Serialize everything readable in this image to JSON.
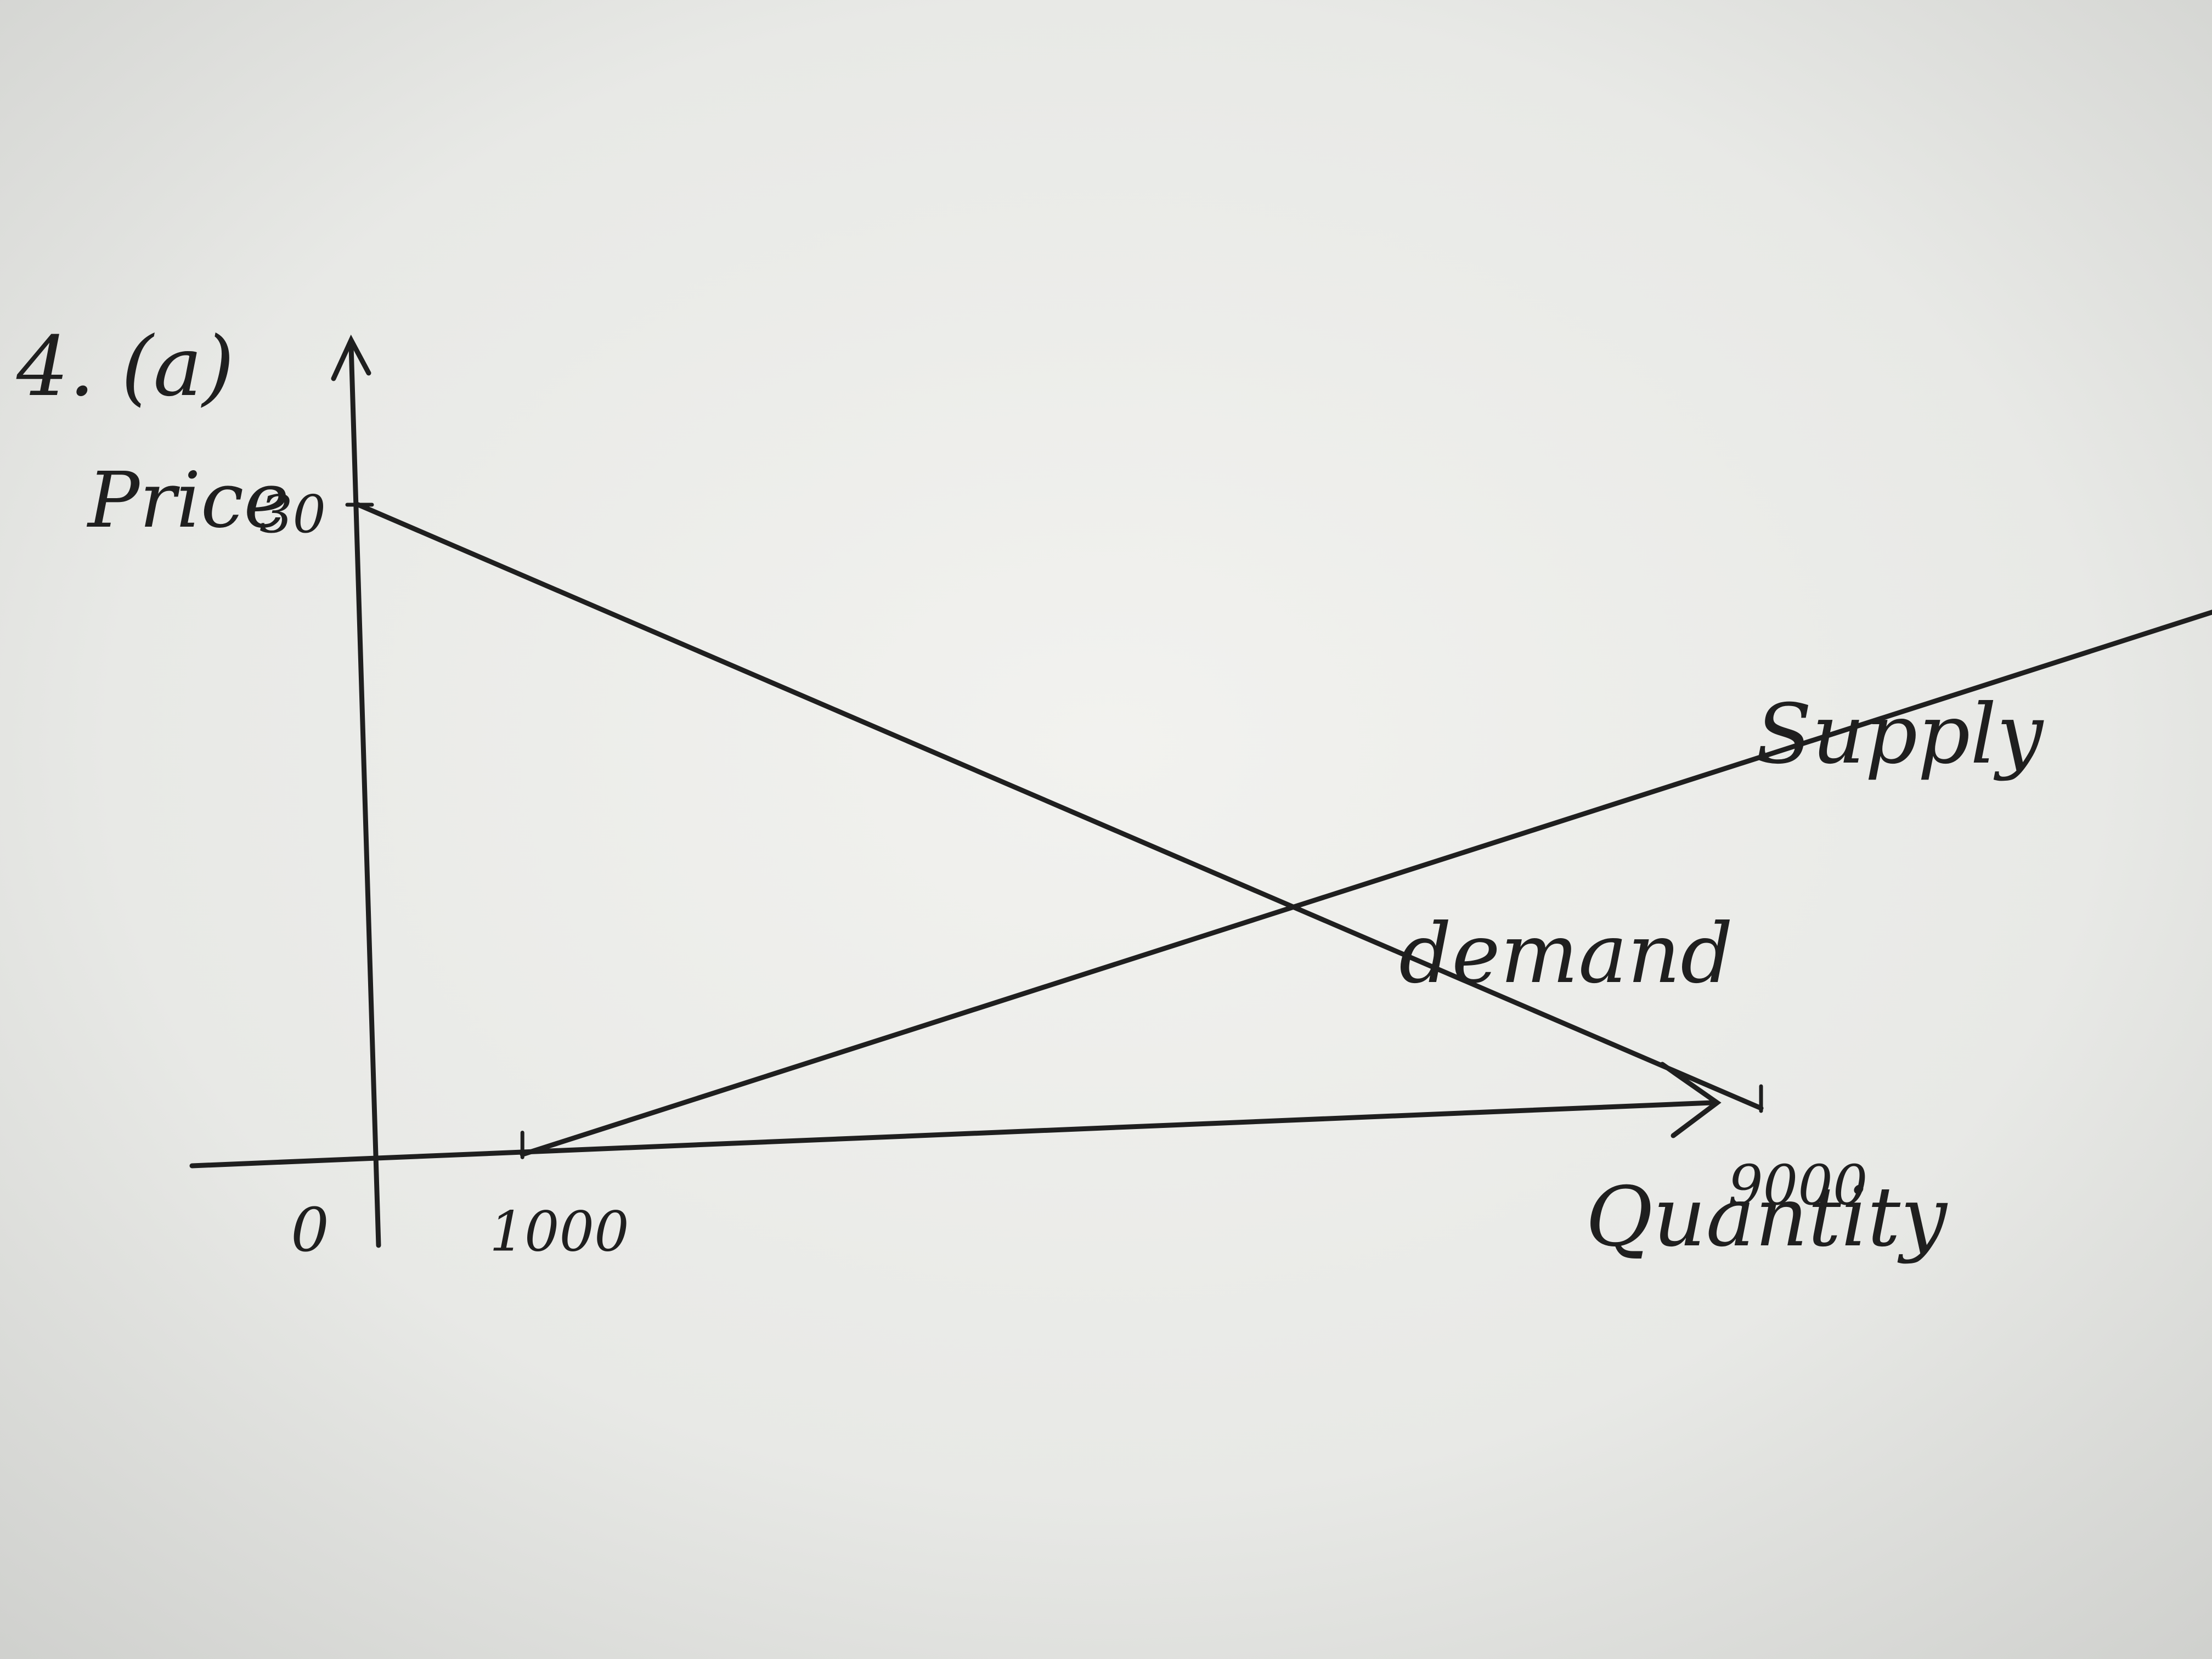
{
  "problem_label": "4. (a)",
  "chart_data": {
    "type": "line",
    "title": "",
    "xlabel": "Quantity",
    "ylabel": "Price",
    "xlim": [
      0,
      11000
    ],
    "ylim": [
      0,
      36
    ],
    "origin_label": "0",
    "x_tick_labels": [
      {
        "value": 1000,
        "label": "1000"
      },
      {
        "value": 9000,
        "label": "9000"
      }
    ],
    "y_tick_labels": [
      {
        "value": 30,
        "label": "30"
      }
    ],
    "series": [
      {
        "name": "demand",
        "x": [
          0,
          9000
        ],
        "y": [
          30,
          0
        ]
      },
      {
        "name": "Supply",
        "x": [
          1000,
          12000
        ],
        "y": [
          0,
          22
        ]
      }
    ]
  }
}
